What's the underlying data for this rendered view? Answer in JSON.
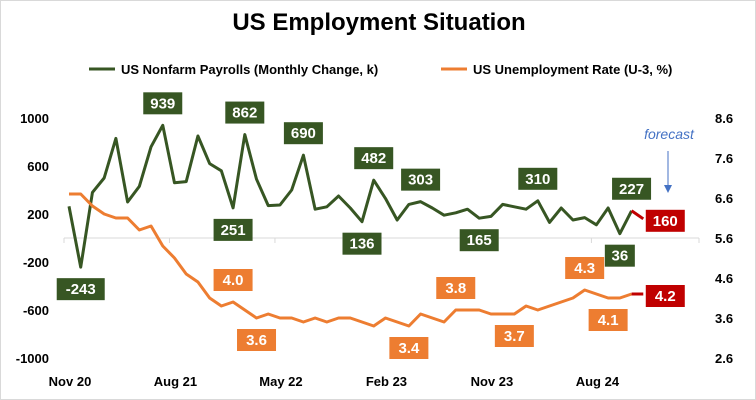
{
  "chart_data": {
    "type": "line",
    "title": "US Employment Situation",
    "x_tick_labels": [
      "Nov 20",
      "Aug 21",
      "May 22",
      "Feb 23",
      "Nov 23",
      "Aug 24"
    ],
    "x_start": "Nov 20",
    "x_end": "Dec 24",
    "x_step": "month",
    "left_axis": {
      "ylim": [
        -1000,
        1000
      ],
      "ticks": [
        "1000",
        "600",
        "200",
        "-200",
        "-600",
        "-1000"
      ]
    },
    "right_axis": {
      "ylim": [
        2.6,
        8.6
      ],
      "ticks": [
        "8.6",
        "7.6",
        "6.6",
        "5.6",
        "4.6",
        "3.6",
        "2.6"
      ]
    },
    "legend_placement": "top",
    "annotation": "forecast",
    "colors": {
      "payrolls": "#375623",
      "unemployment": "#ED7D31",
      "forecast": "#C00000",
      "annotation": "#4472C4"
    },
    "series": [
      {
        "name": "US Nonfarm Payrolls (Monthly Change, k)",
        "axis": "left",
        "values": [
          264,
          -243,
          380,
          500,
          830,
          300,
          430,
          760,
          939,
          460,
          470,
          850,
          620,
          560,
          251,
          862,
          490,
          270,
          275,
          400,
          690,
          240,
          260,
          350,
          250,
          136,
          482,
          330,
          150,
          280,
          303,
          250,
          190,
          210,
          240,
          165,
          180,
          280,
          260,
          240,
          310,
          130,
          250,
          150,
          170,
          110,
          250,
          36,
          227
        ],
        "forecast": 160,
        "labels": [
          {
            "i": 1,
            "text": "-243",
            "pos": "below"
          },
          {
            "i": 8,
            "text": "939",
            "pos": "above"
          },
          {
            "i": 14,
            "text": "251",
            "pos": "below"
          },
          {
            "i": 15,
            "text": "862",
            "pos": "above"
          },
          {
            "i": 20,
            "text": "690",
            "pos": "above"
          },
          {
            "i": 25,
            "text": "136",
            "pos": "below"
          },
          {
            "i": 26,
            "text": "482",
            "pos": "above"
          },
          {
            "i": 30,
            "text": "303",
            "pos": "above"
          },
          {
            "i": 35,
            "text": "165",
            "pos": "below"
          },
          {
            "i": 40,
            "text": "310",
            "pos": "above"
          },
          {
            "i": 47,
            "text": "36",
            "pos": "below"
          },
          {
            "i": 48,
            "text": "227",
            "pos": "above"
          }
        ],
        "forecast_label": "160"
      },
      {
        "name": "US Unemployment Rate (U-3, %)",
        "axis": "right",
        "values": [
          6.7,
          6.7,
          6.4,
          6.2,
          6.1,
          6.1,
          5.8,
          5.9,
          5.4,
          5.1,
          4.7,
          4.5,
          4.1,
          3.9,
          4.0,
          3.8,
          3.6,
          3.7,
          3.6,
          3.6,
          3.5,
          3.6,
          3.5,
          3.6,
          3.6,
          3.5,
          3.4,
          3.6,
          3.5,
          3.4,
          3.7,
          3.6,
          3.5,
          3.8,
          3.8,
          3.8,
          3.7,
          3.7,
          3.7,
          3.9,
          3.8,
          3.9,
          4.0,
          4.1,
          4.3,
          4.2,
          4.1,
          4.1,
          4.2
        ],
        "forecast": 4.2,
        "labels": [
          {
            "i": 14,
            "text": "4.0",
            "pos": "above"
          },
          {
            "i": 16,
            "text": "3.6",
            "pos": "below"
          },
          {
            "i": 29,
            "text": "3.4",
            "pos": "below"
          },
          {
            "i": 33,
            "text": "3.8",
            "pos": "above"
          },
          {
            "i": 38,
            "text": "3.7",
            "pos": "below"
          },
          {
            "i": 44,
            "text": "4.3",
            "pos": "above"
          },
          {
            "i": 46,
            "text": "4.1",
            "pos": "below"
          }
        ],
        "forecast_label": "4.2"
      }
    ]
  }
}
